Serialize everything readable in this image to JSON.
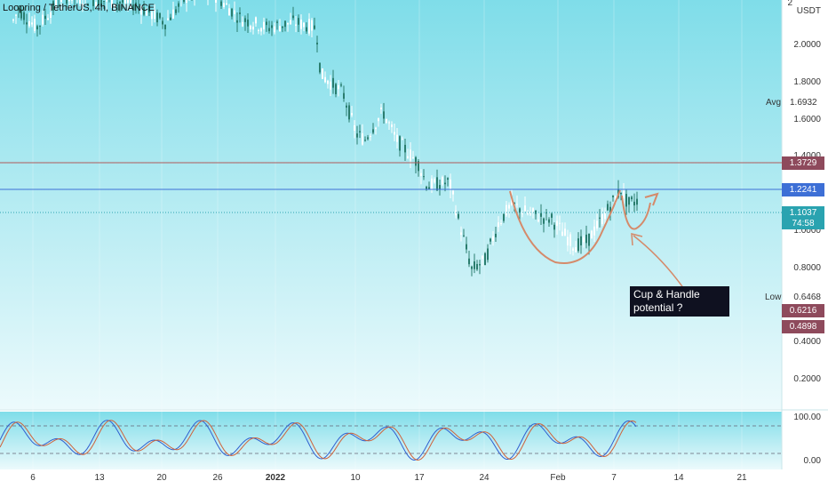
{
  "title": "Loopring / TetherUS, 4h, BINANCE",
  "currency": "USDT",
  "price_axis": [
    "2",
    "2.0000",
    "1.8000",
    "1.6000",
    "1.4000",
    "1.2000",
    "1.0000",
    "0.8000",
    "0.6468",
    "0.4000",
    "0.2000"
  ],
  "price_tags": [
    {
      "label": "1.3729",
      "color": "#8e4a5c"
    },
    {
      "label": "1.2241",
      "color": "#3d6fd6"
    },
    {
      "label": "1.1037",
      "color": "#2aa3b0"
    },
    {
      "label": "74:58",
      "color": "#2aa3b0"
    },
    {
      "label": "0.6216",
      "color": "#8e4a5c"
    },
    {
      "label": "0.4898",
      "color": "#8e4a5c"
    }
  ],
  "side_labels": {
    "avg_label": "Avg",
    "avg_value": "1.6932",
    "low_label": "Low",
    "low_value": "0.6468"
  },
  "annotation": "Cup &  Handle\npotential ?",
  "time_axis": [
    "6",
    "13",
    "20",
    "26",
    "2022",
    "10",
    "17",
    "24",
    "Feb",
    "7",
    "14",
    "21"
  ],
  "osc_axis": [
    "100.00",
    "0.00"
  ],
  "colors": {
    "bg_top": "#7fdde9",
    "bg_bottom": "#e4f8fb",
    "candle_up": "#ffffff",
    "candle_down": "#2a7d6e",
    "cup_line": "#d58a6a",
    "resistance_line": "#b05a5a",
    "support_line": "#3d6fd6"
  },
  "chart_data": {
    "type": "candlestick",
    "symbol": "Loopring / TetherUS",
    "interval": "4h",
    "exchange": "BINANCE",
    "x": [
      "Dec 6",
      "Dec 13",
      "Dec 20",
      "Dec 26",
      "Jan 1 2022",
      "Jan 10",
      "Jan 17",
      "Jan 24",
      "Feb 1",
      "Feb 7"
    ],
    "close": [
      2.18,
      2.12,
      2.08,
      2.05,
      2.02,
      1.55,
      1.22,
      0.88,
      1.02,
      1.1
    ],
    "horizontal_lines": [
      1.3729,
      1.2241
    ],
    "last_price": 1.1037,
    "avg": 1.6932,
    "low": 0.6468,
    "ylim": [
      0.0,
      2.2
    ],
    "oscillator": {
      "type": "stochastic",
      "ylim": [
        0,
        100
      ],
      "levels": [
        20,
        80
      ]
    }
  }
}
